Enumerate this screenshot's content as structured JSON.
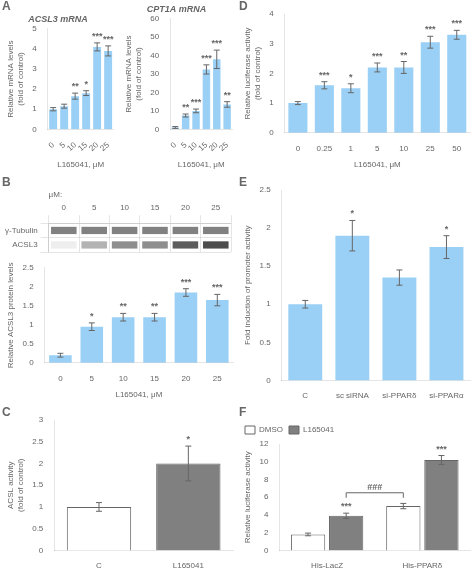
{
  "chart_data": [
    {
      "type": "bar",
      "title": "ACSL3 mRNA",
      "xlabel": "L165041, μM",
      "ylabel": "Relative mRNA levels\n(fold of control)",
      "categories": [
        "0",
        "5",
        "10",
        "15",
        "20",
        "25"
      ],
      "values": [
        1.0,
        1.15,
        1.65,
        1.8,
        4.1,
        3.9
      ],
      "errors": [
        0.08,
        0.1,
        0.15,
        0.12,
        0.2,
        0.25
      ],
      "ylim": [
        0,
        5
      ],
      "yticks": [
        0,
        1,
        2,
        3,
        4,
        5
      ],
      "grid": false,
      "annotations": [
        {
          "text": "A"
        },
        {
          "x": "10",
          "text": "**"
        },
        {
          "x": "15",
          "text": "*"
        },
        {
          "x": "20",
          "text": "***"
        },
        {
          "x": "25",
          "text": "***"
        }
      ]
    },
    {
      "type": "bar",
      "title": "CPT1A mRNA",
      "xlabel": "L165041, μM",
      "ylabel": "Relative mRNA levels\n(fold of control)",
      "categories": [
        "0",
        "5",
        "10",
        "15",
        "20",
        "25"
      ],
      "values": [
        1.0,
        7.5,
        10.0,
        32.5,
        38.0,
        13.5
      ],
      "errors": [
        0.5,
        0.8,
        1.0,
        2.5,
        5.0,
        1.5
      ],
      "ylim": [
        0,
        60
      ],
      "yticks": [
        0,
        10,
        20,
        30,
        40,
        50,
        60
      ],
      "grid": false,
      "annotations": [
        {
          "x": "5",
          "text": "**"
        },
        {
          "x": "10",
          "text": "***"
        },
        {
          "x": "15",
          "text": "***"
        },
        {
          "x": "20",
          "text": "***"
        },
        {
          "x": "25",
          "text": "**"
        }
      ]
    },
    {
      "type": "bar",
      "xlabel": "L165041, μM",
      "ylabel": "Relative luciferase activity\n(fold of control)",
      "categories": [
        "0",
        "0.25",
        "1",
        "5",
        "10",
        "25",
        "50"
      ],
      "values": [
        1.0,
        1.6,
        1.5,
        2.2,
        2.2,
        3.05,
        3.3
      ],
      "errors": [
        0.05,
        0.12,
        0.15,
        0.15,
        0.2,
        0.2,
        0.15
      ],
      "ylim": [
        0,
        4
      ],
      "yticks": [
        0,
        1,
        2,
        3,
        4
      ],
      "grid": false,
      "annotations": [
        {
          "text": "D"
        },
        {
          "x": "0.25",
          "text": "***"
        },
        {
          "x": "1",
          "text": "*"
        },
        {
          "x": "5",
          "text": "***"
        },
        {
          "x": "10",
          "text": "**"
        },
        {
          "x": "25",
          "text": "***"
        },
        {
          "x": "50",
          "text": "***"
        }
      ]
    },
    {
      "type": "heatmap",
      "xlabel": "μM:",
      "categories": [
        "0",
        "5",
        "10",
        "15",
        "20",
        "25"
      ],
      "series": [
        {
          "name": "ACSL3",
          "values": [
            0.08,
            0.35,
            0.52,
            0.52,
            0.75,
            0.82
          ]
        },
        {
          "name": "γ-Tubulin",
          "values": [
            0.58,
            0.58,
            0.58,
            0.58,
            0.58,
            0.58
          ]
        }
      ],
      "annotations": [
        {
          "text": "B"
        }
      ]
    },
    {
      "type": "bar",
      "xlabel": "L165041, μM",
      "ylabel": "Relative ACSL3 protein levels",
      "categories": [
        "0",
        "5",
        "10",
        "15",
        "20",
        "25"
      ],
      "values": [
        0.2,
        0.95,
        1.2,
        1.2,
        1.85,
        1.65
      ],
      "errors": [
        0.05,
        0.1,
        0.1,
        0.1,
        0.1,
        0.15
      ],
      "ylim": [
        0,
        2.5
      ],
      "yticks": [
        0,
        0.5,
        1,
        1.5,
        2,
        2.5
      ],
      "grid": false,
      "annotations": [
        {
          "x": "5",
          "text": "*"
        },
        {
          "x": "10",
          "text": "**"
        },
        {
          "x": "15",
          "text": "**"
        },
        {
          "x": "20",
          "text": "***"
        },
        {
          "x": "25",
          "text": "***"
        }
      ]
    },
    {
      "type": "bar",
      "ylabel": "Fold induction of promoter activity",
      "categories": [
        "C",
        "sc siRNA",
        "si-PPARδ",
        "si-PPARα"
      ],
      "values": [
        1.0,
        1.9,
        1.35,
        1.75
      ],
      "errors": [
        0.05,
        0.2,
        0.1,
        0.15
      ],
      "ylim": [
        0,
        2.5
      ],
      "yticks": [
        0,
        0.5,
        1,
        1.5,
        2,
        2.5
      ],
      "grid": false,
      "annotations": [
        {
          "text": "E"
        },
        {
          "x": "sc siRNA",
          "text": "*"
        },
        {
          "x": "si-PPARα",
          "text": "*"
        }
      ]
    },
    {
      "type": "bar",
      "ylabel": "ACSL activity\n(fold of control)",
      "categories": [
        "C",
        "L165041"
      ],
      "values": [
        1.0,
        2.0
      ],
      "errors": [
        0.1,
        0.4
      ],
      "colors": [
        "white",
        "#808080"
      ],
      "ylim": [
        0,
        3
      ],
      "yticks": [
        0,
        0.5,
        1,
        1.5,
        2,
        2.5,
        3
      ],
      "grid": false,
      "annotations": [
        {
          "text": "C"
        },
        {
          "x": "L165041",
          "text": "*"
        }
      ]
    },
    {
      "type": "bar",
      "ylabel": "Relative luciferase activity",
      "categories": [
        "His-LacZ",
        "His-PPARδ"
      ],
      "series": [
        {
          "name": "DMSO",
          "color": "white",
          "values": [
            1.8,
            5.0
          ],
          "errors": [
            0.15,
            0.3
          ]
        },
        {
          "name": "L165041",
          "color": "#808080",
          "values": [
            3.9,
            10.2
          ],
          "errors": [
            0.3,
            0.5
          ]
        }
      ],
      "ylim": [
        0,
        12
      ],
      "yticks": [
        0,
        2,
        4,
        6,
        8,
        10,
        12
      ],
      "grid": false,
      "legend": "upper left",
      "annotations": [
        {
          "text": "F"
        },
        {
          "x": "His-LacZ",
          "series": "L165041",
          "text": "***"
        },
        {
          "x": "His-PPARδ",
          "series": "L165041",
          "text": "***"
        },
        {
          "text": "###",
          "y": 6.5,
          "from": {
            "x": "His-LacZ",
            "series": "L165041"
          },
          "to": {
            "x": "His-PPARδ",
            "series": "DMSO"
          }
        }
      ]
    }
  ]
}
